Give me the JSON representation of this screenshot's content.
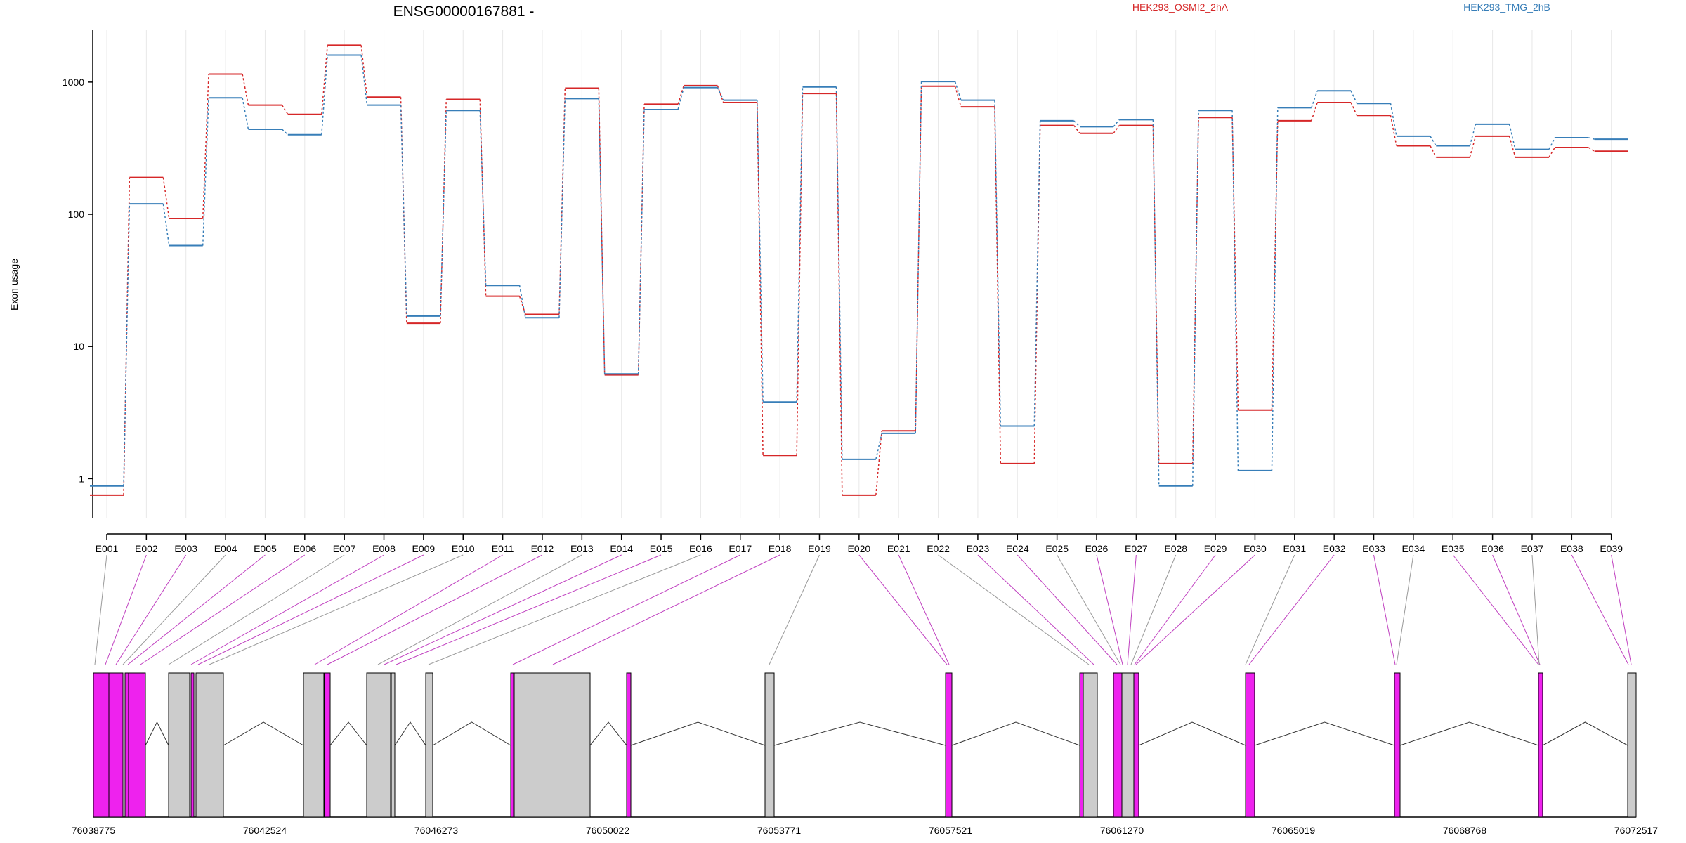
{
  "chart_data": {
    "type": "line",
    "title": "ENSG00000167881 -",
    "ylabel": "Exon usage",
    "yscale": "log",
    "ylim": [
      0.5,
      2500
    ],
    "yticks": [
      1,
      10,
      100,
      1000
    ],
    "ytick_labels": [
      "1",
      "10",
      "100",
      "1000"
    ],
    "grid": "vertical, light",
    "legend_placement": "top",
    "categories": [
      "E001",
      "E002",
      "E003",
      "E004",
      "E005",
      "E006",
      "E007",
      "E008",
      "E009",
      "E010",
      "E011",
      "E012",
      "E013",
      "E014",
      "E015",
      "E016",
      "E017",
      "E018",
      "E019",
      "E020",
      "E021",
      "E022",
      "E023",
      "E024",
      "E025",
      "E026",
      "E027",
      "E028",
      "E029",
      "E030",
      "E031",
      "E032",
      "E033",
      "E034",
      "E035",
      "E036",
      "E037",
      "E038",
      "E039"
    ],
    "series": [
      {
        "name": "HEK293_OSMI2_2hA",
        "color": "#d62728",
        "values": [
          0.75,
          190,
          93,
          1150,
          670,
          570,
          1900,
          770,
          15,
          740,
          24,
          17.5,
          900,
          6.1,
          680,
          940,
          700,
          1.5,
          820,
          0.75,
          2.3,
          930,
          650,
          1.3,
          470,
          410,
          470,
          1.3,
          540,
          3.3,
          510,
          700,
          560,
          330,
          270,
          390,
          270,
          320,
          300
        ]
      },
      {
        "name": "HEK293_TMG_2hB",
        "color": "#377eb8",
        "values": [
          0.88,
          120,
          58,
          760,
          440,
          400,
          1600,
          670,
          17,
          610,
          29,
          16.5,
          750,
          6.2,
          620,
          910,
          730,
          3.8,
          920,
          1.4,
          2.2,
          1010,
          730,
          2.5,
          510,
          460,
          520,
          0.88,
          610,
          1.15,
          640,
          860,
          690,
          390,
          330,
          480,
          310,
          380,
          370
        ]
      }
    ]
  },
  "gene_model": {
    "coordinate_labels": [
      "76038775",
      "76042524",
      "76046273",
      "76050022",
      "76053771",
      "76057521",
      "76061270",
      "76065019",
      "76068768",
      "76072517"
    ],
    "highlight_color": "#ee22ee",
    "plain_color": "#cccccc"
  }
}
